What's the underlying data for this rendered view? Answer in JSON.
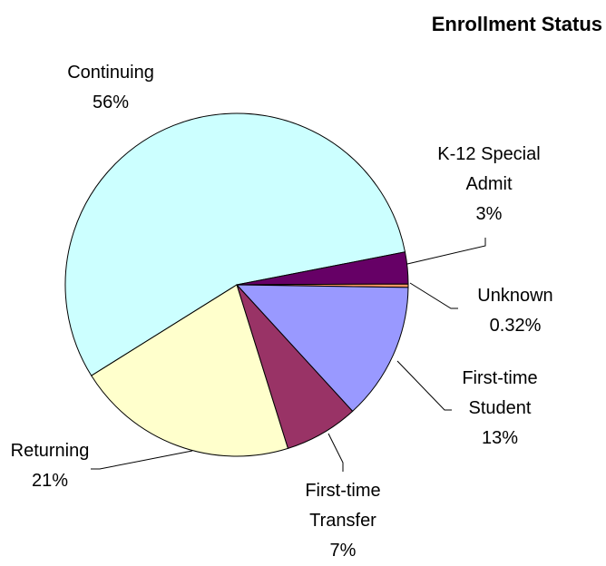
{
  "chart_data": {
    "type": "pie",
    "title": "Enrollment Status",
    "categories": [
      "Continuing",
      "K-12 Special Admit",
      "Unknown",
      "First-time Student",
      "First-time Transfer",
      "Returning"
    ],
    "values": [
      56,
      3,
      0.32,
      13,
      7,
      21
    ],
    "value_labels": [
      "56%",
      "3%",
      "0.32%",
      "13%",
      "7%",
      "21%"
    ],
    "colors": [
      "#ccffff",
      "#660066",
      "#ff9966",
      "#9999ff",
      "#993366",
      "#ffffcc"
    ]
  }
}
